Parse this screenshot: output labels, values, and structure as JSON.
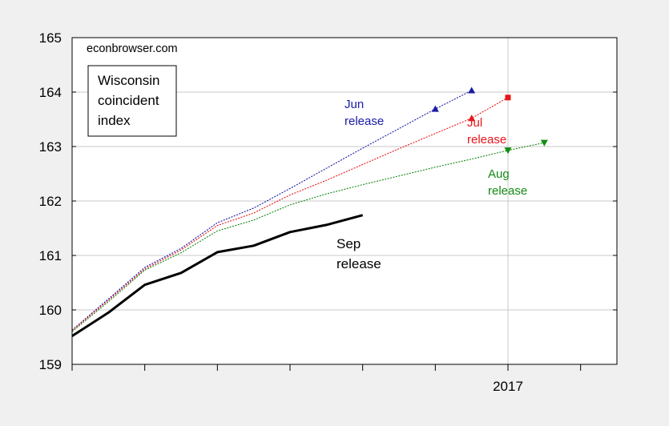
{
  "chart_data": {
    "type": "line",
    "watermark": "econbrowser.com",
    "title_lines": [
      "Wisconsin",
      "coincident",
      "index"
    ],
    "xlabel": "",
    "ylabel": "",
    "ylim": [
      159,
      165
    ],
    "yticks": [
      159,
      160,
      161,
      162,
      163,
      164,
      165
    ],
    "xlim": [
      0,
      15
    ],
    "x_tick_marks": [
      0,
      2,
      4,
      6,
      8,
      10,
      12,
      14
    ],
    "x_tick_labels": [
      {
        "x": 12,
        "label": "2017"
      }
    ],
    "grid": true,
    "series": [
      {
        "name": "Jun release",
        "label_lines": [
          "Jun",
          "release"
        ],
        "color": "#1a1aa6",
        "style": "dotted",
        "values": [
          [
            0,
            159.63
          ],
          [
            1,
            160.2
          ],
          [
            2,
            160.78
          ],
          [
            3,
            161.13
          ],
          [
            4,
            161.6
          ],
          [
            5,
            161.87
          ],
          [
            6,
            162.23
          ],
          [
            7,
            162.6
          ],
          [
            8,
            162.97
          ],
          [
            9,
            163.33
          ],
          [
            10,
            163.69
          ],
          [
            11,
            164.03
          ]
        ]
      },
      {
        "name": "Jul release",
        "label_lines": [
          "Jul",
          "release"
        ],
        "color": "#e8161b",
        "style": "dotted",
        "values": [
          [
            0,
            159.62
          ],
          [
            1,
            160.18
          ],
          [
            2,
            160.75
          ],
          [
            3,
            161.1
          ],
          [
            4,
            161.55
          ],
          [
            5,
            161.78
          ],
          [
            6,
            162.11
          ],
          [
            7,
            162.38
          ],
          [
            8,
            162.67
          ],
          [
            9,
            162.96
          ],
          [
            10,
            163.24
          ],
          [
            11,
            163.52
          ],
          [
            12,
            163.9
          ]
        ]
      },
      {
        "name": "Aug release",
        "label_lines": [
          "Aug",
          "release"
        ],
        "color": "#138a13",
        "style": "dotted",
        "values": [
          [
            0,
            159.6
          ],
          [
            1,
            160.15
          ],
          [
            2,
            160.73
          ],
          [
            3,
            161.05
          ],
          [
            4,
            161.45
          ],
          [
            5,
            161.65
          ],
          [
            6,
            161.93
          ],
          [
            7,
            162.13
          ],
          [
            8,
            162.3
          ],
          [
            9,
            162.46
          ],
          [
            10,
            162.62
          ],
          [
            11,
            162.77
          ],
          [
            12,
            162.93
          ],
          [
            13,
            163.07
          ]
        ]
      },
      {
        "name": "Sep release",
        "label_lines": [
          "Sep",
          "release"
        ],
        "color": "#000000",
        "style": "solid",
        "values": [
          [
            0,
            159.52
          ],
          [
            1,
            159.95
          ],
          [
            2,
            160.46
          ],
          [
            3,
            160.68
          ],
          [
            4,
            161.06
          ],
          [
            5,
            161.18
          ],
          [
            6,
            161.43
          ],
          [
            7,
            161.56
          ],
          [
            8,
            161.74
          ]
        ]
      }
    ]
  }
}
